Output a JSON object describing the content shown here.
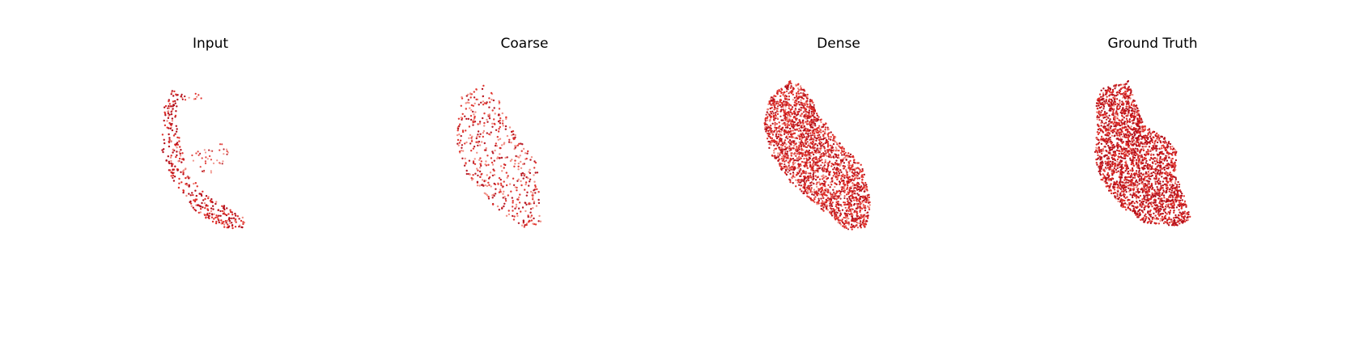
{
  "panels": [
    {
      "title": "Input"
    },
    {
      "title": "Coarse"
    },
    {
      "title": "Dense"
    },
    {
      "title": "Ground Truth"
    }
  ],
  "colors": {
    "point_dark": "#b40f1a",
    "point_mid": "#e0302a",
    "point_light": "#f08a80"
  }
}
